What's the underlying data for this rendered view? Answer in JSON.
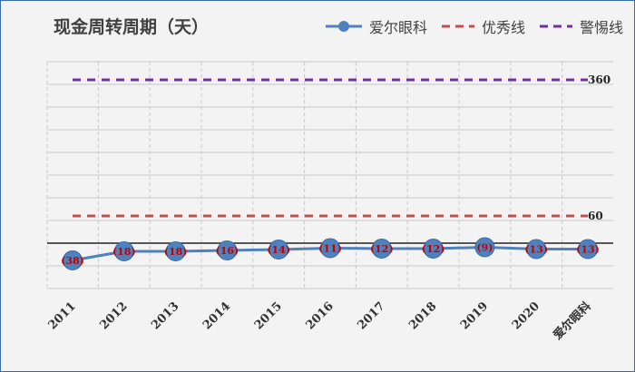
{
  "chart_data": {
    "type": "line",
    "title": "现金周转周期（天）",
    "categories": [
      "2011",
      "2012",
      "2013",
      "2014",
      "2015",
      "2016",
      "2017",
      "2018",
      "2019",
      "2020",
      "爱尔眼科"
    ],
    "series": [
      {
        "name": "爱尔眼科",
        "values": [
          -38,
          -18,
          -18,
          -16,
          -14,
          -11,
          -12,
          -12,
          -9,
          -13,
          -13
        ],
        "color": "#4f81bd"
      },
      {
        "name": "优秀线",
        "values": [
          60,
          60,
          60,
          60,
          60,
          60,
          60,
          60,
          60,
          60,
          60
        ],
        "color": "#c0504d"
      },
      {
        "name": "警惕线",
        "values": [
          360,
          360,
          360,
          360,
          360,
          360,
          360,
          360,
          360,
          360,
          360
        ],
        "color": "#7030a0"
      }
    ],
    "data_labels": [
      "(38)",
      "(18)",
      "(18)",
      "(16)",
      "(14)",
      "(11)",
      "(12)",
      "(12)",
      "(9)",
      "(13)",
      "(13)"
    ],
    "ref_labels": [
      "60",
      "360"
    ],
    "ylim": [
      -100,
      400
    ],
    "grid": true,
    "legend": "top-right"
  }
}
